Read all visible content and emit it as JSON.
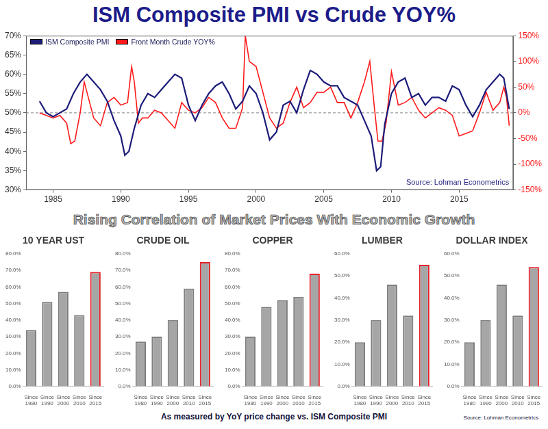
{
  "heading": "Rising Correlation of Market Prices With Economic Growth",
  "footnote": "As measured by YoY price change vs. ISM Composite PMI",
  "source": "Source: Lohman Econometrics",
  "chart_data": [
    {
      "type": "line",
      "title": "ISM Composite PMI vs Crude YOY%",
      "xlim": [
        1983,
        2019
      ],
      "xticks": [
        1985,
        1990,
        1995,
        2000,
        2005,
        2010,
        2015
      ],
      "ylim": [
        30,
        70
      ],
      "yticks": [
        {
          "value": 30,
          "label": "30%"
        },
        {
          "value": 35,
          "label": "35%"
        },
        {
          "value": 40,
          "label": "40%"
        },
        {
          "value": 45,
          "label": "45%"
        },
        {
          "value": 50,
          "label": "50%"
        },
        {
          "value": 55,
          "label": "55%"
        },
        {
          "value": 60,
          "label": "60%"
        },
        {
          "value": 65,
          "label": "65%"
        },
        {
          "value": 70,
          "label": "70%"
        }
      ],
      "y2lim": [
        -150,
        150
      ],
      "y2ticks": [
        {
          "value": -150,
          "label": "-150%"
        },
        {
          "value": -100,
          "label": "-100%"
        },
        {
          "value": -50,
          "label": "-50%"
        },
        {
          "value": 0,
          "label": "0%"
        },
        {
          "value": 50,
          "label": "50%"
        },
        {
          "value": 100,
          "label": "100%"
        },
        {
          "value": 150,
          "label": "150%"
        }
      ],
      "grid": false,
      "legend": "upper left",
      "annotations": [
        "Source: Lohman Econometrics"
      ],
      "reference_line": 50,
      "series": [
        {
          "name": "ISM Composite PMI",
          "color": "#1c1c7a",
          "x": [
            1984.0,
            1984.5,
            1985.0,
            1985.5,
            1986.0,
            1986.5,
            1987.0,
            1987.5,
            1988.0,
            1988.5,
            1989.0,
            1989.5,
            1990.0,
            1990.3,
            1990.6,
            1991.0,
            1991.5,
            1992.0,
            1992.5,
            1993.0,
            1993.5,
            1994.0,
            1994.5,
            1995.0,
            1995.5,
            1996.0,
            1996.5,
            1997.0,
            1997.5,
            1998.0,
            1998.5,
            1999.0,
            1999.5,
            2000.0,
            2000.5,
            2001.0,
            2001.5,
            2002.0,
            2002.5,
            2003.0,
            2003.5,
            2004.0,
            2004.5,
            2005.0,
            2005.5,
            2006.0,
            2006.5,
            2007.0,
            2007.5,
            2008.0,
            2008.5,
            2008.9,
            2009.2,
            2009.5,
            2010.0,
            2010.5,
            2011.0,
            2011.5,
            2012.0,
            2012.5,
            2013.0,
            2013.5,
            2014.0,
            2014.5,
            2015.0,
            2015.5,
            2016.0,
            2016.5,
            2017.0,
            2017.5,
            2018.0,
            2018.3,
            2018.7
          ],
          "values": [
            53,
            50,
            49,
            50,
            51,
            55,
            58,
            60,
            58,
            56,
            53,
            48,
            44,
            39,
            40,
            46,
            52,
            55,
            54,
            56,
            58,
            60,
            59,
            52,
            48,
            52,
            55,
            57,
            58,
            55,
            51,
            53,
            57,
            55,
            50,
            43,
            45,
            52,
            53,
            50,
            56,
            61,
            60,
            58,
            57,
            57,
            54,
            53,
            52,
            48,
            44,
            35,
            36,
            47,
            55,
            58,
            59,
            54,
            55,
            52,
            54,
            54,
            53,
            57,
            56,
            52,
            49,
            52,
            56,
            58,
            60,
            59,
            51
          ]
        },
        {
          "name": "Front Month Crude YOY%",
          "color": "#ff1a1a",
          "axis": "y2",
          "x": [
            1984.0,
            1984.5,
            1985.0,
            1985.5,
            1986.0,
            1986.3,
            1986.6,
            1987.0,
            1987.3,
            1987.6,
            1988.0,
            1988.5,
            1989.0,
            1989.5,
            1990.0,
            1990.5,
            1990.8,
            1991.0,
            1991.3,
            1991.6,
            1992.0,
            1992.5,
            1993.0,
            1993.5,
            1994.0,
            1994.5,
            1995.0,
            1995.5,
            1996.0,
            1996.5,
            1997.0,
            1997.5,
            1998.0,
            1998.5,
            1999.0,
            1999.2,
            1999.5,
            2000.0,
            2000.5,
            2001.0,
            2001.5,
            2002.0,
            2002.5,
            2003.0,
            2003.5,
            2004.0,
            2004.5,
            2005.0,
            2005.5,
            2006.0,
            2006.5,
            2007.0,
            2007.5,
            2008.0,
            2008.4,
            2008.7,
            2009.0,
            2009.3,
            2009.6,
            2010.0,
            2010.5,
            2011.0,
            2011.5,
            2012.0,
            2012.5,
            2013.0,
            2013.5,
            2014.0,
            2014.5,
            2015.0,
            2015.5,
            2016.0,
            2016.5,
            2017.0,
            2017.5,
            2018.0,
            2018.3,
            2018.5,
            2018.7
          ],
          "values": [
            0,
            -5,
            -10,
            -5,
            -20,
            -60,
            -55,
            0,
            60,
            30,
            -10,
            -25,
            20,
            30,
            15,
            20,
            90,
            60,
            -20,
            -10,
            -10,
            5,
            0,
            -15,
            -30,
            20,
            5,
            0,
            10,
            30,
            20,
            -10,
            -30,
            -30,
            10,
            150,
            100,
            90,
            40,
            -10,
            -30,
            -20,
            20,
            50,
            10,
            20,
            40,
            40,
            50,
            20,
            20,
            -10,
            20,
            60,
            100,
            20,
            -55,
            -55,
            -20,
            80,
            15,
            20,
            30,
            5,
            -10,
            0,
            10,
            5,
            -5,
            -45,
            -40,
            -35,
            0,
            40,
            5,
            20,
            50,
            30,
            -25
          ]
        }
      ]
    },
    {
      "type": "bar",
      "title": "10 YEAR UST",
      "categories": [
        "Since 1980",
        "Since 1990",
        "Since 2000",
        "Since 2010",
        "Since 2015"
      ],
      "values": [
        34,
        51,
        57,
        43,
        69
      ],
      "color": "#a6a6a6",
      "colors": [
        "#7f7f7f",
        "#7f7f7f",
        "#7f7f7f",
        "#7f7f7f",
        "#e8202a"
      ],
      "ylim": [
        0,
        80
      ],
      "yticks": [
        {
          "value": 0,
          "label": "0.0%"
        },
        {
          "value": 10,
          "label": "10.0%"
        },
        {
          "value": 20,
          "label": "20.0%"
        },
        {
          "value": 30,
          "label": "30.0%"
        },
        {
          "value": 40,
          "label": "40.0%"
        },
        {
          "value": 50,
          "label": "50.0%"
        },
        {
          "value": 60,
          "label": "60.0%"
        },
        {
          "value": 70,
          "label": "70.0%"
        },
        {
          "value": 80,
          "label": "80.0%"
        }
      ],
      "grid": false
    },
    {
      "type": "bar",
      "title": "CRUDE OIL",
      "categories": [
        "Since 1980",
        "Since 1990",
        "Since 2000",
        "Since 2010",
        "Since 2015"
      ],
      "values": [
        27,
        30,
        40,
        59,
        75
      ],
      "color": "#a6a6a6",
      "colors": [
        "#7f7f7f",
        "#7f7f7f",
        "#7f7f7f",
        "#7f7f7f",
        "#e8202a"
      ],
      "ylim": [
        0,
        80
      ],
      "yticks": [
        {
          "value": 0,
          "label": "0.0%"
        },
        {
          "value": 10,
          "label": "10.0%"
        },
        {
          "value": 20,
          "label": "20.0%"
        },
        {
          "value": 30,
          "label": "30.0%"
        },
        {
          "value": 40,
          "label": "40.0%"
        },
        {
          "value": 50,
          "label": "50.0%"
        },
        {
          "value": 60,
          "label": "60.0%"
        },
        {
          "value": 70,
          "label": "70.0%"
        },
        {
          "value": 80,
          "label": "80.0%"
        }
      ],
      "grid": false
    },
    {
      "type": "bar",
      "title": "COPPER",
      "categories": [
        "Since 1980",
        "Since 1990",
        "Since 2000",
        "Since 2010",
        "Since 2015"
      ],
      "values": [
        30,
        48,
        52,
        54,
        68
      ],
      "color": "#a6a6a6",
      "colors": [
        "#7f7f7f",
        "#7f7f7f",
        "#7f7f7f",
        "#7f7f7f",
        "#e8202a"
      ],
      "ylim": [
        0,
        80
      ],
      "yticks": [
        {
          "value": 0,
          "label": "0.0%"
        },
        {
          "value": 10,
          "label": "10.0%"
        },
        {
          "value": 20,
          "label": "20.0%"
        },
        {
          "value": 30,
          "label": "30.0%"
        },
        {
          "value": 40,
          "label": "40.0%"
        },
        {
          "value": 50,
          "label": "50.0%"
        },
        {
          "value": 60,
          "label": "60.0%"
        },
        {
          "value": 70,
          "label": "70.0%"
        },
        {
          "value": 80,
          "label": "80.0%"
        }
      ],
      "grid": false
    },
    {
      "type": "bar",
      "title": "LUMBER",
      "categories": [
        "Since 1980",
        "Since 1990",
        "Since 2000",
        "Since 2010",
        "Since 2015"
      ],
      "values": [
        20,
        30,
        46,
        32,
        55
      ],
      "color": "#a6a6a6",
      "colors": [
        "#7f7f7f",
        "#7f7f7f",
        "#7f7f7f",
        "#7f7f7f",
        "#e8202a"
      ],
      "ylim": [
        0,
        60
      ],
      "yticks": [
        {
          "value": 0,
          "label": "0.0%"
        },
        {
          "value": 10,
          "label": "10.0%"
        },
        {
          "value": 20,
          "label": "20.0%"
        },
        {
          "value": 30,
          "label": "30.0%"
        },
        {
          "value": 40,
          "label": "40.0%"
        },
        {
          "value": 50,
          "label": "50.0%"
        },
        {
          "value": 60,
          "label": "60.0%"
        }
      ],
      "grid": false
    },
    {
      "type": "bar",
      "title": "DOLLAR INDEX",
      "categories": [
        "Since 1980",
        "Since 1990",
        "Since 2000",
        "Since 2010",
        "Since 2015"
      ],
      "values": [
        20,
        30,
        46,
        32,
        54
      ],
      "color": "#a6a6a6",
      "colors": [
        "#7f7f7f",
        "#7f7f7f",
        "#7f7f7f",
        "#7f7f7f",
        "#e8202a"
      ],
      "ylim": [
        0,
        60
      ],
      "yticks": [
        {
          "value": 0,
          "label": "0.0%"
        },
        {
          "value": 10,
          "label": "10.0%"
        },
        {
          "value": 20,
          "label": "20.0%"
        },
        {
          "value": 30,
          "label": "30.0%"
        },
        {
          "value": 40,
          "label": "40.0%"
        },
        {
          "value": 50,
          "label": "50.0%"
        },
        {
          "value": 60,
          "label": "60.0%"
        }
      ],
      "grid": false
    }
  ]
}
